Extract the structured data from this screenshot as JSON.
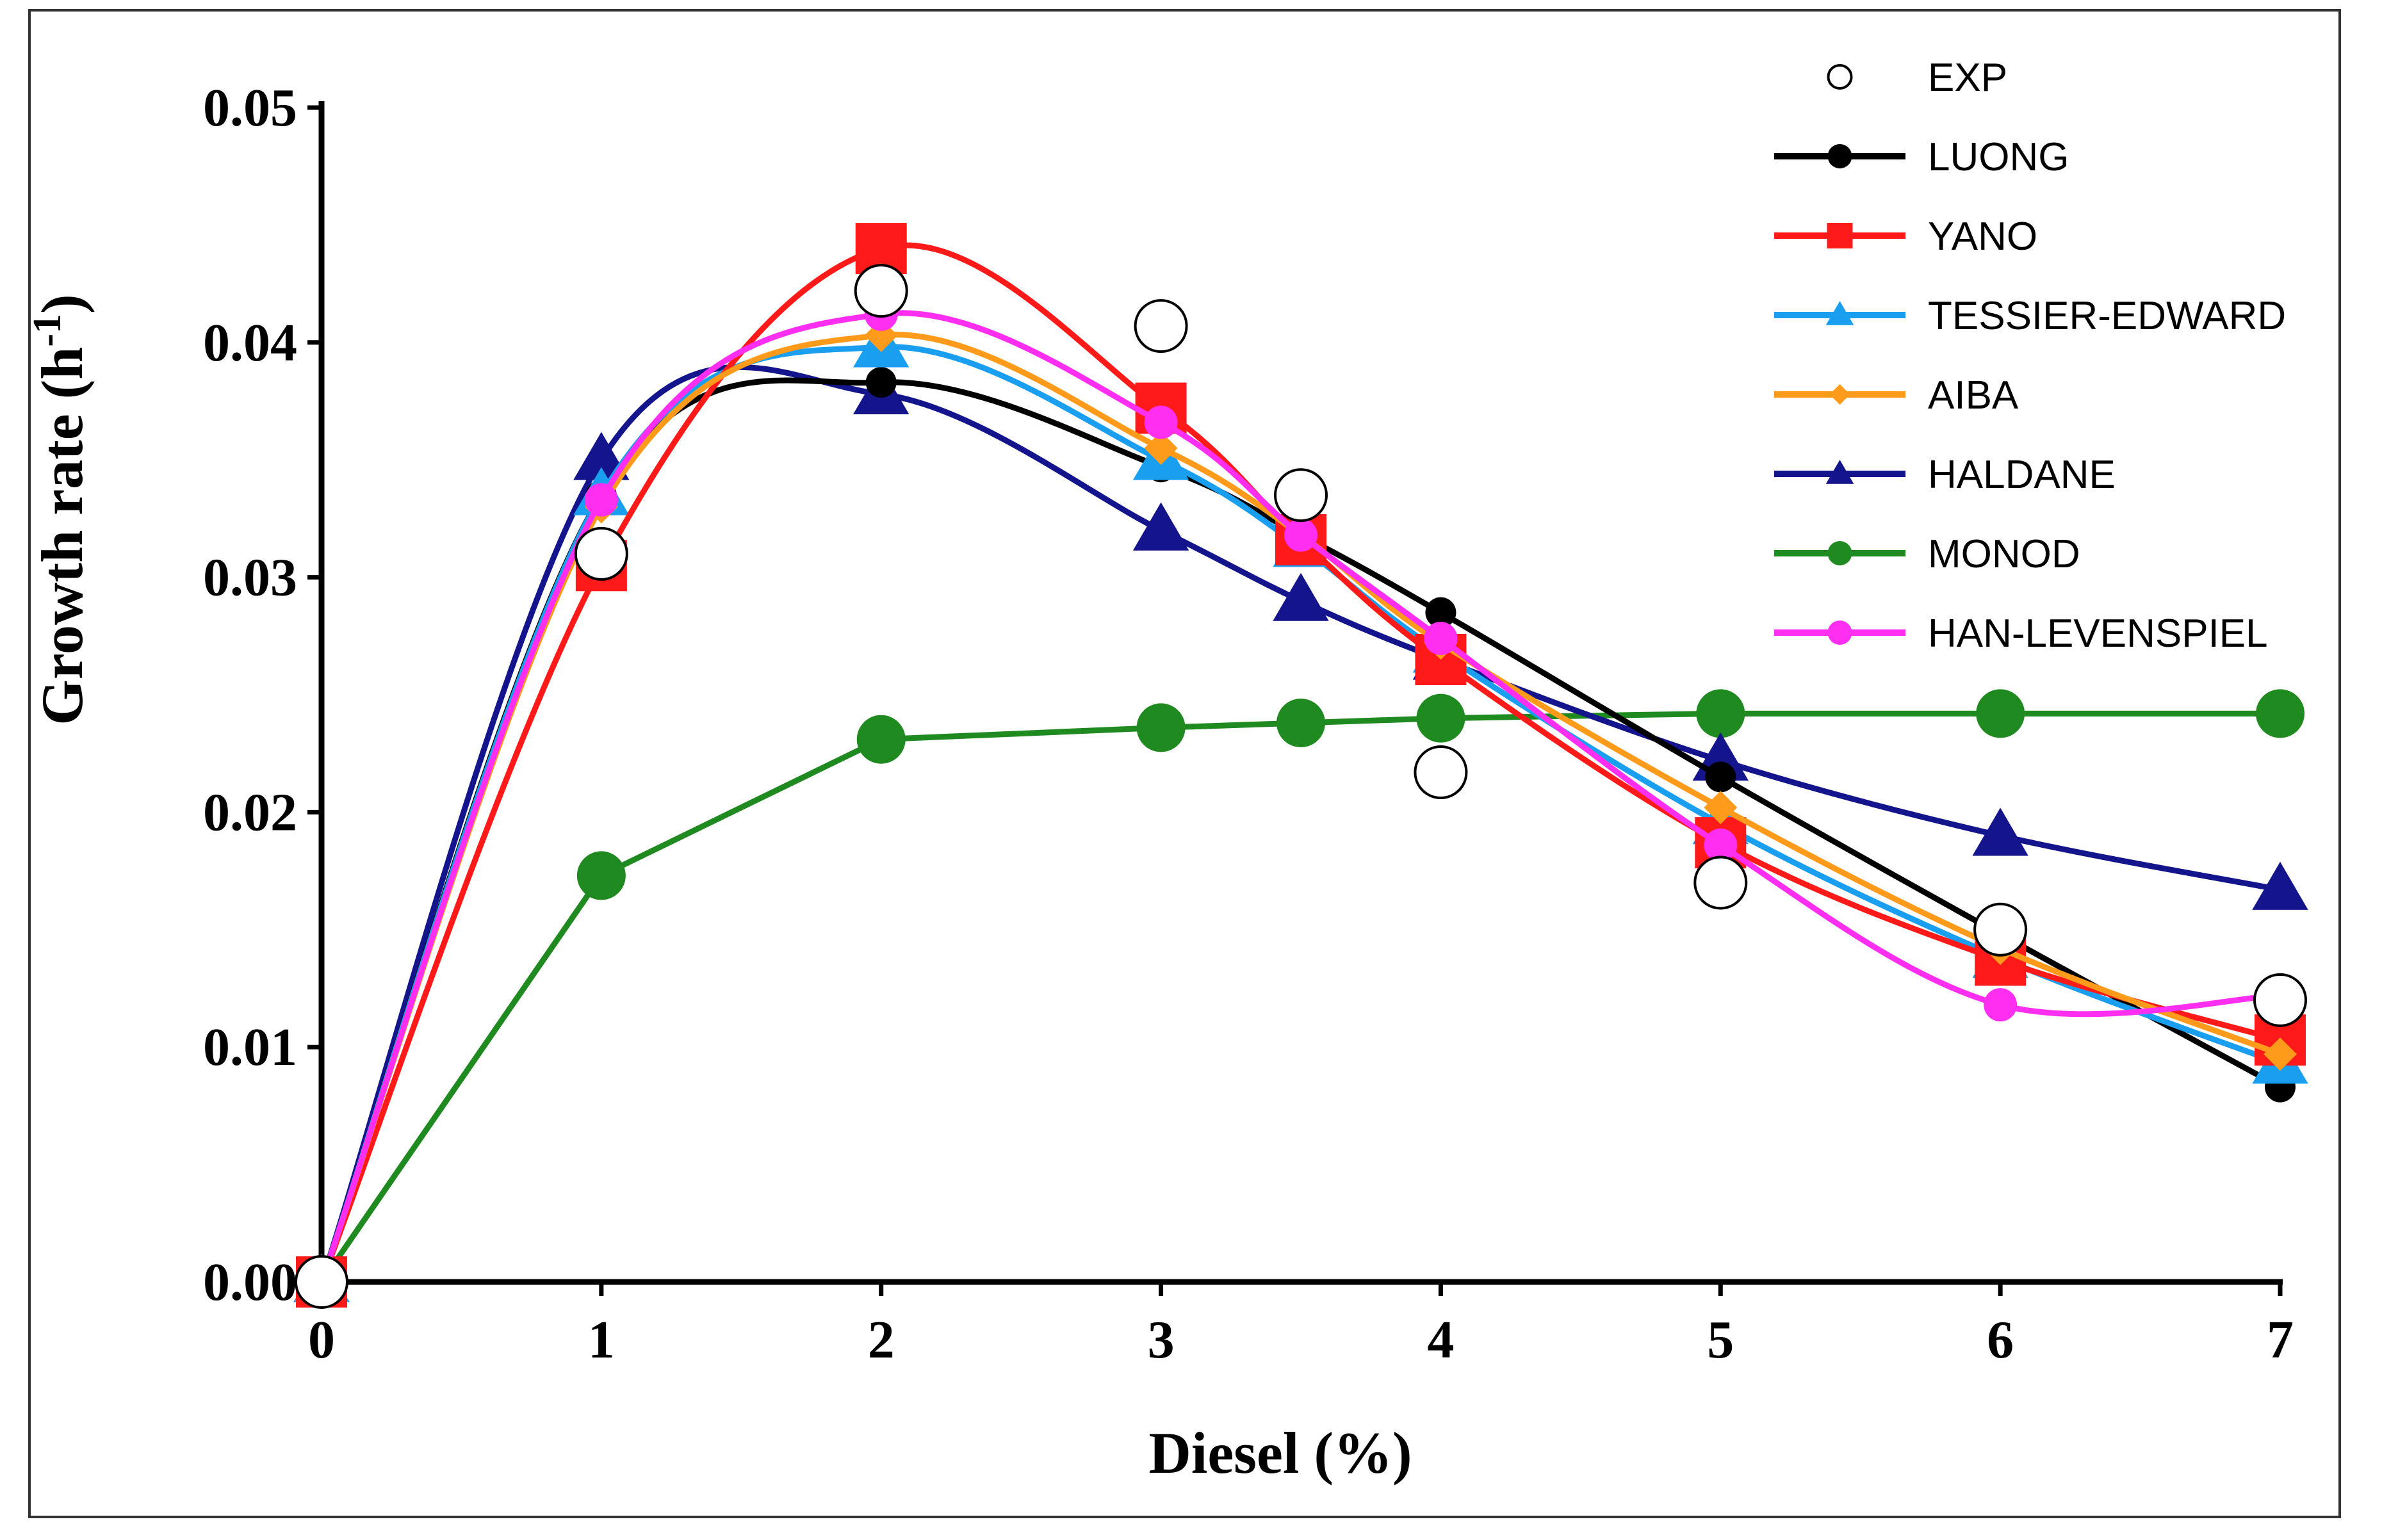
{
  "chart_data": {
    "type": "line",
    "title": "",
    "xlabel": "Diesel (%)",
    "ylabel": "Growth rate (h-1)",
    "ylabel_main": "Growth rate (h",
    "ylabel_sup": "-1",
    "ylabel_close": ")",
    "xlim": [
      0,
      7
    ],
    "ylim": [
      0,
      0.05
    ],
    "xticks": [
      "0",
      "1",
      "2",
      "3",
      "4",
      "5",
      "6",
      "7"
    ],
    "yticks": [
      "0.00",
      "0.01",
      "0.02",
      "0.03",
      "0.04",
      "0.05"
    ],
    "grid": false,
    "legend_position": "top-right",
    "series": [
      {
        "name": "EXP",
        "color": "#000000",
        "marker": "open-circle",
        "line": false,
        "x": [
          0,
          1,
          2,
          3,
          3.5,
          4,
          5,
          6,
          7
        ],
        "y": [
          0,
          0.031,
          0.0422,
          0.0407,
          0.0335,
          0.0217,
          0.017,
          0.015,
          0.012
        ]
      },
      {
        "name": "LUONG",
        "color": "#000000",
        "marker": "circle",
        "line": true,
        "x": [
          0,
          1,
          2,
          3,
          3.5,
          4,
          5,
          6,
          7
        ],
        "y": [
          0,
          0.0335,
          0.0383,
          0.0347,
          0.0318,
          0.0285,
          0.0215,
          0.0148,
          0.0083
        ]
      },
      {
        "name": "YANO",
        "color": "#ff1a1a",
        "marker": "square",
        "line": true,
        "x": [
          0,
          1,
          2,
          3,
          3.5,
          4,
          5,
          6,
          7
        ],
        "y": [
          0,
          0.0305,
          0.044,
          0.0372,
          0.0316,
          0.0265,
          0.0187,
          0.0137,
          0.0103
        ]
      },
      {
        "name": "TESSIER-EDWARD",
        "color": "#1a9ff0",
        "marker": "triangle",
        "line": true,
        "x": [
          0,
          1,
          2,
          3,
          3.5,
          4,
          5,
          6,
          7
        ],
        "y": [
          0,
          0.0335,
          0.0398,
          0.035,
          0.0313,
          0.0268,
          0.0195,
          0.0138,
          0.0093
        ]
      },
      {
        "name": "AIBA",
        "color": "#ff9a1a",
        "marker": "diamond",
        "line": true,
        "x": [
          0,
          1,
          2,
          3,
          3.5,
          4,
          5,
          6,
          7
        ],
        "y": [
          0,
          0.033,
          0.0403,
          0.0355,
          0.0318,
          0.0272,
          0.0202,
          0.0142,
          0.0097
        ]
      },
      {
        "name": "HALDANE",
        "color": "#14148c",
        "marker": "triangle",
        "line": true,
        "x": [
          0,
          1,
          2,
          3,
          3.5,
          4,
          5,
          6,
          7
        ],
        "y": [
          0,
          0.035,
          0.0378,
          0.032,
          0.029,
          0.0265,
          0.0222,
          0.019,
          0.0167
        ]
      },
      {
        "name": "MONOD",
        "color": "#1f8a1f",
        "marker": "circle",
        "line": true,
        "x": [
          0,
          1,
          2,
          3,
          3.5,
          4,
          5,
          6,
          7
        ],
        "y": [
          0,
          0.0173,
          0.0231,
          0.0236,
          0.0238,
          0.024,
          0.0242,
          0.0242,
          0.0242
        ]
      },
      {
        "name": "HAN-LEVENSPIEL",
        "color": "#ff2ef0",
        "marker": "circle",
        "line": true,
        "x": [
          0,
          1,
          2,
          3,
          3.5,
          4,
          5,
          6,
          7
        ],
        "y": [
          0,
          0.0333,
          0.0412,
          0.0366,
          0.0318,
          0.0274,
          0.0186,
          0.0118,
          0.0122
        ]
      }
    ]
  }
}
